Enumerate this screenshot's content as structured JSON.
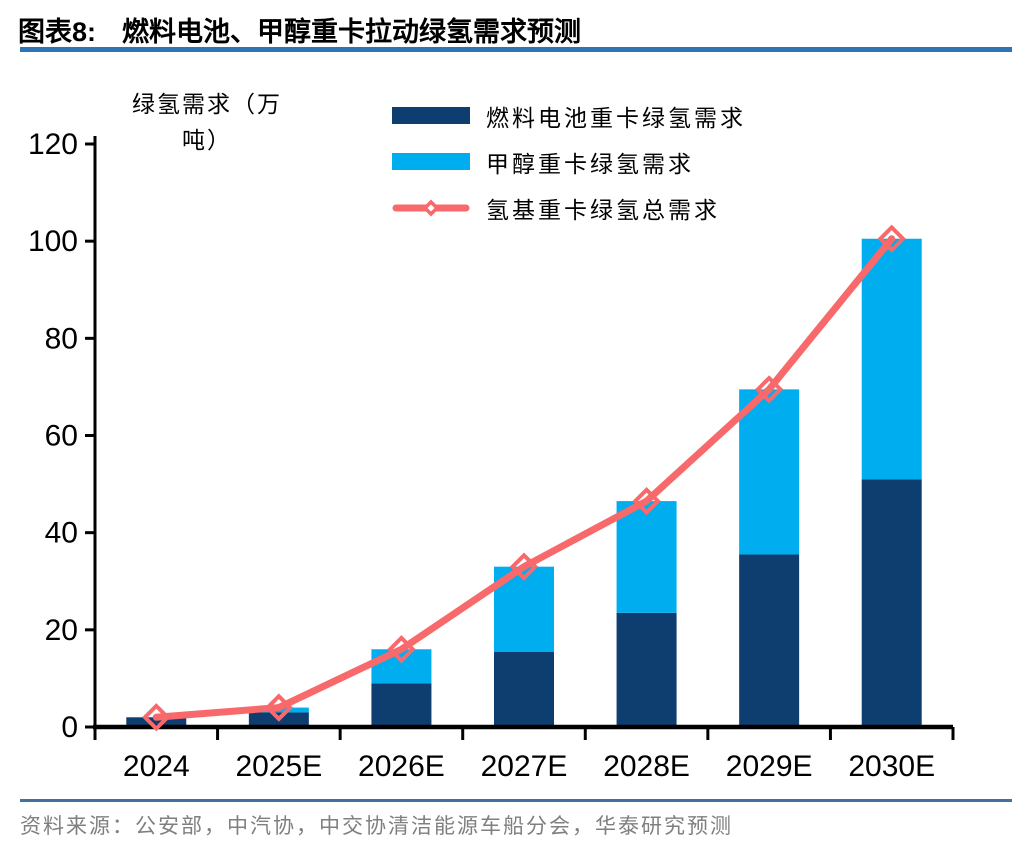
{
  "title": {
    "prefix": "图表8:",
    "text": "燃料电池、甲醇重卡拉动绿氢需求预测"
  },
  "source": {
    "text": "资料来源：公安部，中汽协，中交协清洁能源车船分会，华泰研究预测"
  },
  "colors": {
    "title_rule": "#2e75b6",
    "source_rule": "#41719c",
    "axis": "#000000",
    "source_text": "#7f7f7f",
    "background": "#ffffff",
    "fuel_cell_bar": "#0e3d6f",
    "methanol_bar": "#00aeef",
    "total_line": "#f8696b"
  },
  "chart_data": {
    "type": "bar",
    "subtype": "stacked-bars-with-total-line",
    "title": "燃料电池、甲醇重卡拉动绿氢需求预测",
    "ylabel": "绿氢需求（万吨）",
    "ylabel_lines": [
      "绿氢需求（万",
      "吨）"
    ],
    "xlabel": "",
    "ylim": [
      0,
      120
    ],
    "yticks": [
      0,
      20,
      40,
      60,
      80,
      100,
      120
    ],
    "grid": false,
    "legend_position": "top-center",
    "categories": [
      "2024",
      "2025E",
      "2026E",
      "2027E",
      "2028E",
      "2029E",
      "2030E"
    ],
    "series": [
      {
        "name": "燃料电池重卡绿氢需求",
        "type": "bar",
        "stack": true,
        "color": "#0e3d6f",
        "values": [
          2,
          3,
          9,
          15.5,
          23.5,
          35.5,
          51
        ]
      },
      {
        "name": "甲醇重卡绿氢需求",
        "type": "bar",
        "stack": true,
        "color": "#00aeef",
        "values": [
          0,
          1,
          7,
          17.5,
          23,
          34,
          49.5
        ]
      },
      {
        "name": "氢基重卡绿氢总需求",
        "type": "line",
        "marker": "open-diamond",
        "color": "#f8696b",
        "values": [
          2,
          4,
          16,
          33,
          46.5,
          69.5,
          100.5
        ]
      }
    ]
  }
}
